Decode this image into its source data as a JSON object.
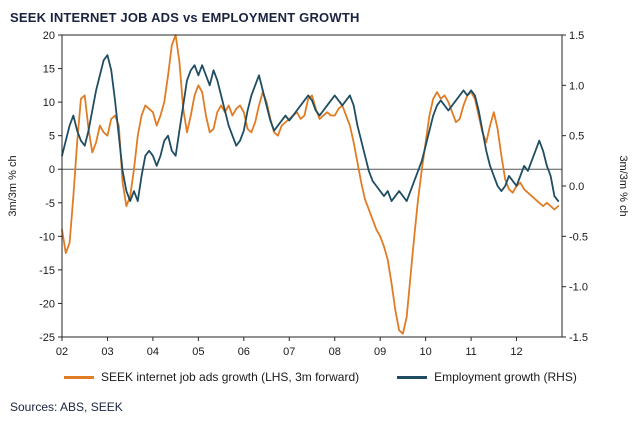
{
  "chart_data": {
    "type": "line",
    "title": "SEEK INTERNET JOB ADS vs EMPLOYMENT GROWTH",
    "x_start": 2002,
    "x_interval_years": 0.0833333,
    "x_range": [
      2002,
      2013
    ],
    "x_ticks": {
      "values": [
        2002,
        2003,
        2004,
        2005,
        2006,
        2007,
        2008,
        2009,
        2010,
        2011,
        2012
      ],
      "labels": [
        "02",
        "03",
        "04",
        "05",
        "06",
        "07",
        "08",
        "09",
        "10",
        "11",
        "12"
      ]
    },
    "left_axis": {
      "label": "3m/3m % ch",
      "min": -25,
      "max": 20,
      "tick_values": [
        20,
        15,
        10,
        5,
        0,
        -5,
        -10,
        -15,
        -20,
        -25
      ],
      "tick_labels": [
        "20",
        "15",
        "10",
        "5",
        "0",
        "-5",
        "-10",
        "-15",
        "-20",
        "-25"
      ]
    },
    "right_axis": {
      "label": "3m/3m % ch",
      "min": -1.5,
      "max": 1.5,
      "tick_values": [
        1.5,
        1.0,
        0.5,
        0.0,
        -0.5,
        -1.0,
        -1.5
      ],
      "tick_labels": [
        "1.5",
        "1.0",
        "0.5",
        "0.0",
        "-0.5",
        "-1.0",
        "-1.5"
      ]
    },
    "zero_line_left_value": 0,
    "grid": false,
    "legend_position": "bottom",
    "series": [
      {
        "name": "SEEK internet job ads growth (LHS, 3m forward)",
        "axis": "left",
        "color": "#E07C24",
        "values": [
          -9,
          -12.5,
          -11,
          -4,
          4,
          10.5,
          11,
          6,
          2.5,
          4,
          6.5,
          5.5,
          5,
          7.5,
          8,
          6.5,
          -2,
          -5.5,
          -4,
          0,
          5,
          8,
          9.5,
          9,
          8.5,
          6.5,
          8,
          10,
          14,
          18.5,
          20,
          16,
          9,
          5.5,
          8,
          11,
          12.5,
          11.5,
          8,
          5.5,
          6,
          8.5,
          9.5,
          8.5,
          9.5,
          8,
          9,
          9.5,
          8.5,
          6,
          5.5,
          7,
          9.5,
          11.5,
          10,
          7.5,
          5.5,
          5,
          6.5,
          7,
          7.5,
          8,
          8.5,
          7.5,
          8,
          10.5,
          11,
          9,
          7.5,
          8,
          8.5,
          8,
          8,
          9,
          9.5,
          8,
          6.5,
          4,
          1,
          -2,
          -4.5,
          -6,
          -7.5,
          -9,
          -10,
          -11.5,
          -13.5,
          -17,
          -21,
          -24,
          -24.5,
          -22,
          -16,
          -10,
          -4.5,
          0,
          4,
          8,
          10.5,
          11.5,
          10.5,
          11,
          10,
          8.5,
          7,
          7.5,
          9.5,
          11,
          11.5,
          10.5,
          8,
          5.5,
          4,
          6.5,
          8.5,
          6,
          2,
          -1.5,
          -3,
          -3.5,
          -2.5,
          -2,
          -3,
          -3.5,
          -4,
          -4.5,
          -5,
          -5.5,
          -5,
          -5.5,
          -6,
          -5.5
        ]
      },
      {
        "name": "Employment growth (RHS)",
        "axis": "right",
        "color": "#1F4E63",
        "values": [
          0.3,
          0.45,
          0.6,
          0.7,
          0.55,
          0.45,
          0.4,
          0.55,
          0.75,
          0.95,
          1.1,
          1.25,
          1.3,
          1.15,
          0.85,
          0.5,
          0.15,
          -0.05,
          -0.15,
          -0.05,
          -0.15,
          0.1,
          0.3,
          0.35,
          0.3,
          0.2,
          0.3,
          0.45,
          0.5,
          0.35,
          0.3,
          0.55,
          0.8,
          1.05,
          1.15,
          1.2,
          1.1,
          1.2,
          1.1,
          1.0,
          1.15,
          1.05,
          0.9,
          0.75,
          0.6,
          0.5,
          0.4,
          0.45,
          0.55,
          0.75,
          0.9,
          1.0,
          1.1,
          0.95,
          0.8,
          0.65,
          0.55,
          0.6,
          0.65,
          0.7,
          0.65,
          0.7,
          0.75,
          0.8,
          0.85,
          0.9,
          0.85,
          0.75,
          0.7,
          0.75,
          0.8,
          0.85,
          0.9,
          0.85,
          0.8,
          0.85,
          0.9,
          0.8,
          0.6,
          0.45,
          0.3,
          0.15,
          0.05,
          0.0,
          -0.05,
          -0.1,
          -0.05,
          -0.15,
          -0.1,
          -0.05,
          -0.1,
          -0.15,
          -0.05,
          0.05,
          0.15,
          0.25,
          0.4,
          0.55,
          0.7,
          0.8,
          0.85,
          0.8,
          0.75,
          0.8,
          0.85,
          0.9,
          0.95,
          0.9,
          0.95,
          0.9,
          0.75,
          0.55,
          0.35,
          0.2,
          0.1,
          0.0,
          -0.05,
          0.0,
          0.1,
          0.05,
          0.0,
          0.1,
          0.2,
          0.15,
          0.25,
          0.35,
          0.45,
          0.35,
          0.2,
          0.1,
          -0.1,
          -0.15
        ]
      }
    ]
  },
  "footer": {
    "sources": "Sources: ABS, SEEK"
  }
}
